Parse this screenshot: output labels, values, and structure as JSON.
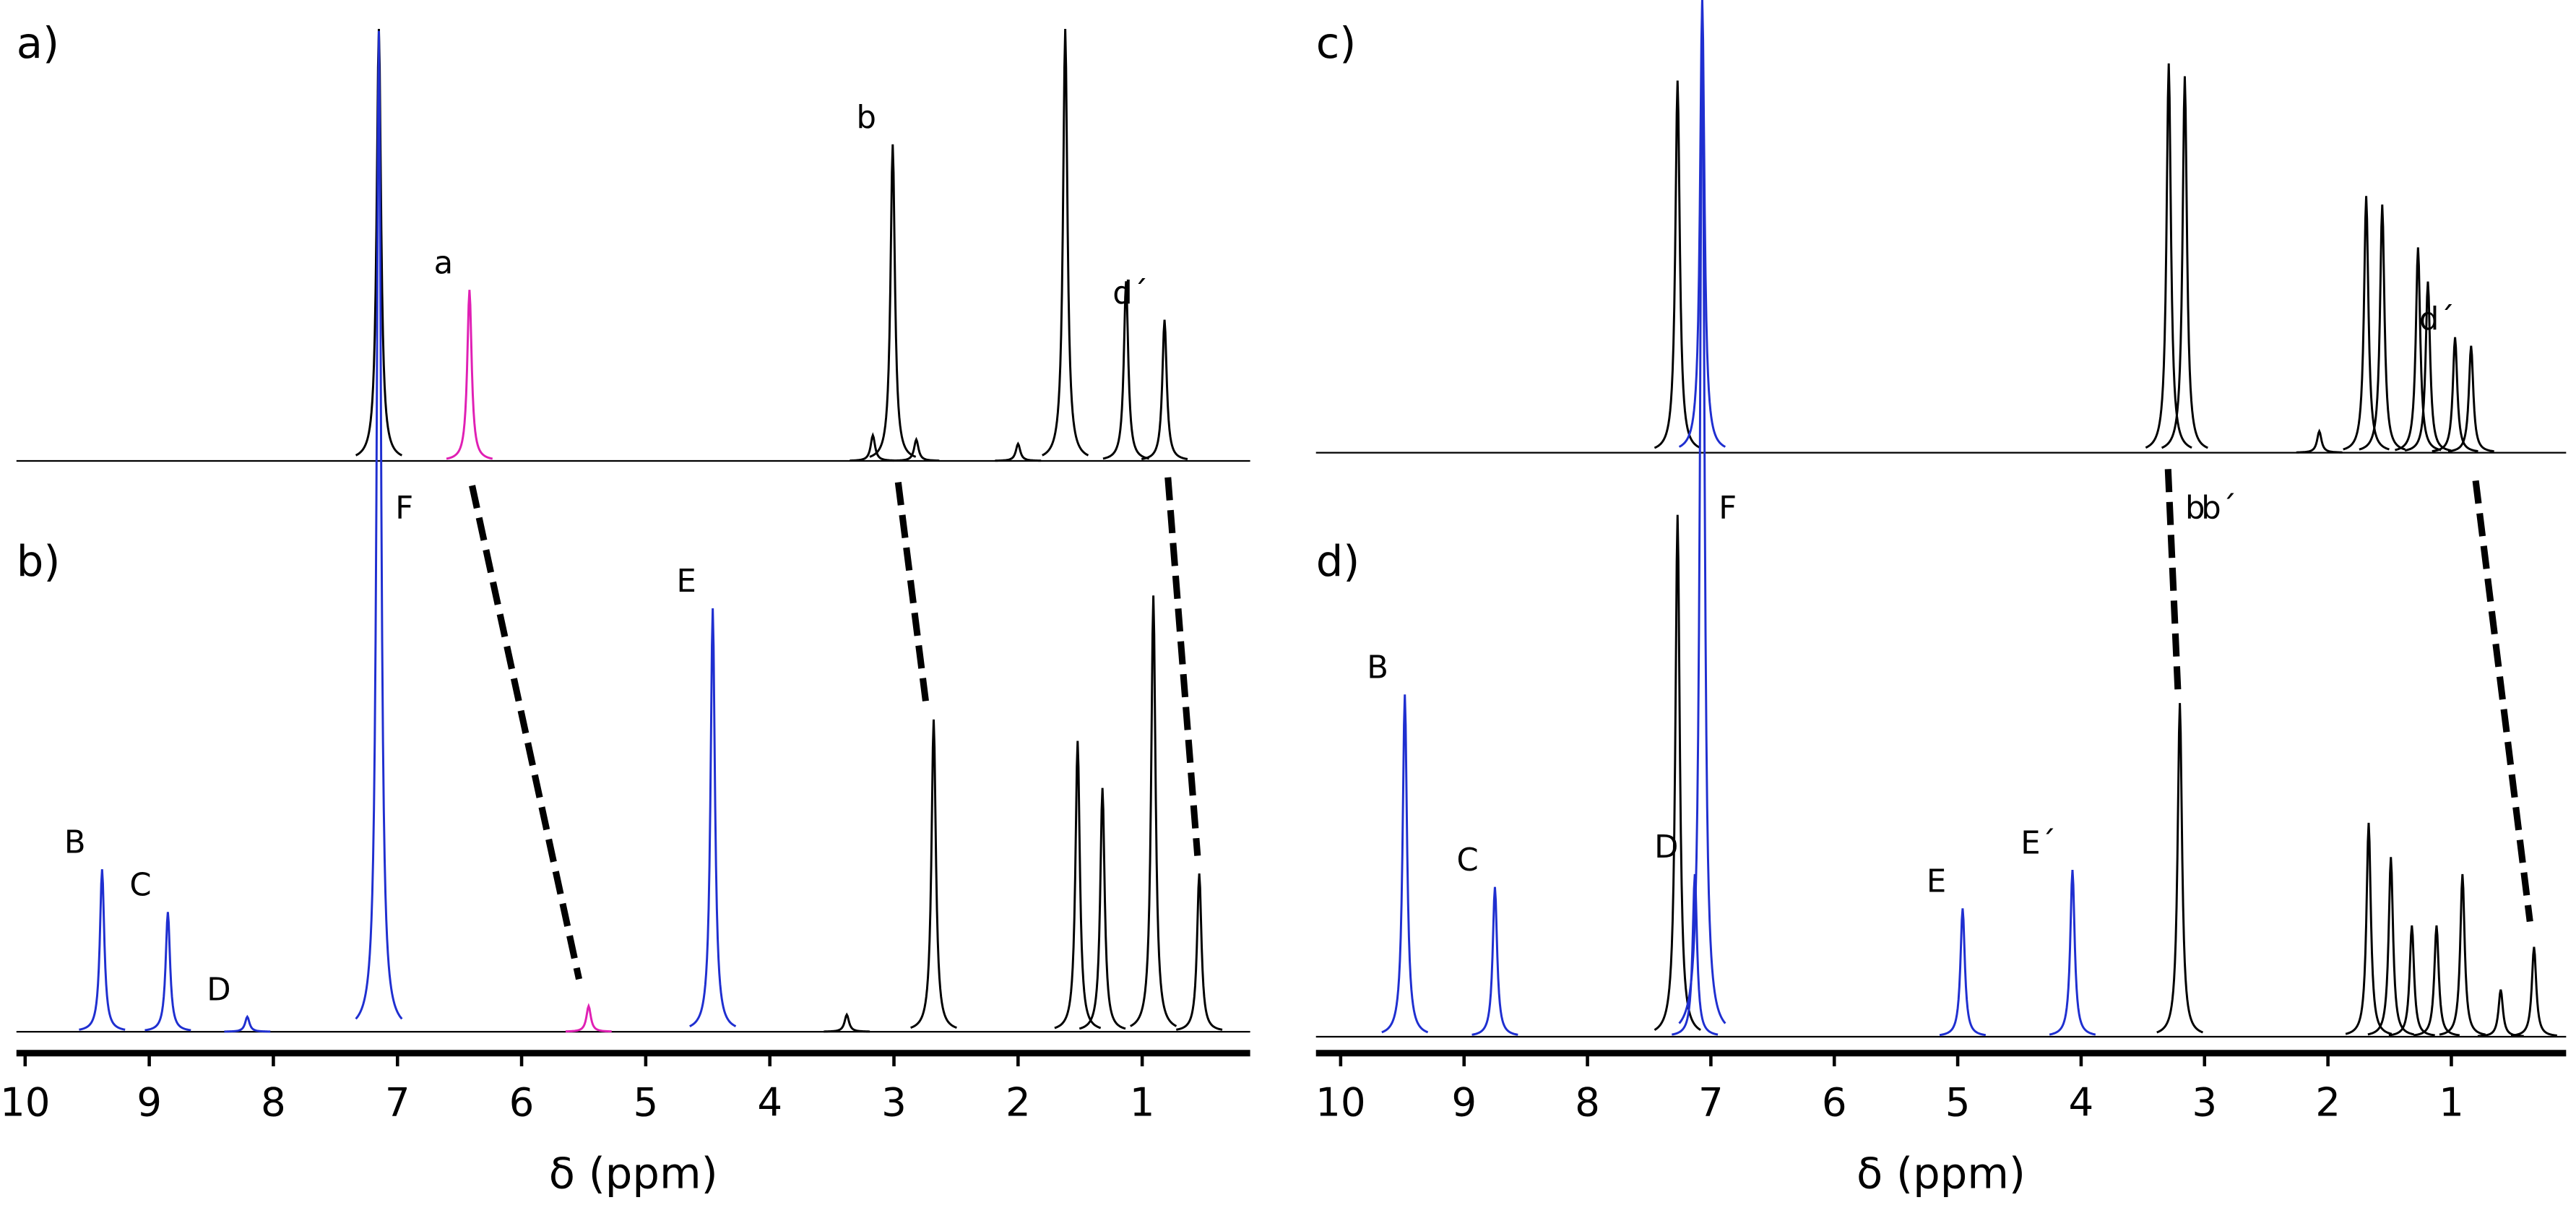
{
  "chart_data": [
    {
      "type": "spectrum",
      "xlabel": "δ (ppm)",
      "xlim": [
        10.07,
        0.13
      ],
      "xticks": [
        10,
        9,
        8,
        7,
        6,
        5,
        4,
        3,
        2,
        1
      ],
      "spectra": [
        {
          "label": "a)",
          "x": [
            7.15,
            6.42,
            3.17,
            3.01,
            2.82,
            2.0,
            1.62,
            1.13,
            0.82
          ],
          "values": [
            101,
            40,
            6,
            74,
            5,
            4,
            101,
            42,
            33
          ],
          "colors": [
            "#000000",
            "#e01fb4",
            "#000000",
            "#000000",
            "#000000",
            "#000000",
            "#000000",
            "#000000",
            "#000000"
          ],
          "peak_labels": [
            null,
            "a",
            null,
            "b",
            null,
            null,
            null,
            null,
            "d´"
          ]
        },
        {
          "label": "b)",
          "x": [
            9.38,
            8.85,
            8.21,
            7.15,
            5.46,
            4.46,
            3.38,
            2.68,
            1.52,
            1.32,
            0.91,
            0.54
          ],
          "values": [
            38,
            28,
            3.5,
            234,
            6,
            99,
            4,
            73,
            68,
            57,
            102,
            37
          ],
          "colors": [
            "#1f2fd0",
            "#1f2fd0",
            "#1f2fd0",
            "#1f2fd0",
            "#e01fb4",
            "#1f2fd0",
            "#000000",
            "#000000",
            "#000000",
            "#000000",
            "#000000",
            "#000000"
          ],
          "peak_labels": [
            "B",
            "C",
            "D",
            "F",
            null,
            "E",
            null,
            null,
            null,
            null,
            null,
            null
          ]
        }
      ]
    },
    {
      "type": "spectrum",
      "xlabel": "δ (ppm)",
      "xlim": [
        10.2,
        0.07
      ],
      "xticks": [
        10,
        9,
        8,
        7,
        6,
        5,
        4,
        3,
        2,
        1
      ],
      "spectra": [
        {
          "label": "c)",
          "x": [
            7.27,
            7.07,
            3.29,
            3.16,
            2.07,
            1.69,
            1.56,
            1.27,
            1.19,
            0.97,
            0.84
          ],
          "values": [
            87,
            106,
            91,
            88,
            5,
            60,
            58,
            48,
            40,
            27,
            25
          ],
          "colors": [
            "#000000",
            "#1f2fd0",
            "#000000",
            "#000000",
            "#000000",
            "#000000",
            "#000000",
            "#000000",
            "#000000",
            "#000000",
            "#000000"
          ],
          "peak_labels": [
            null,
            null,
            "b",
            "b´",
            null,
            null,
            null,
            null,
            null,
            null,
            "d´"
          ]
        },
        {
          "label": "d)",
          "x": [
            9.48,
            8.75,
            7.27,
            7.13,
            7.07,
            4.96,
            4.07,
            3.2,
            1.67,
            1.49,
            1.32,
            1.12,
            0.91,
            0.6,
            0.33
          ],
          "values": [
            80,
            35,
            122,
            38,
            242,
            30,
            39,
            78,
            50,
            42,
            26,
            26,
            38,
            11,
            21
          ],
          "colors": [
            "#1f2fd0",
            "#1f2fd0",
            "#000000",
            "#1f2fd0",
            "#1f2fd0",
            "#1f2fd0",
            "#1f2fd0",
            "#000000",
            "#000000",
            "#000000",
            "#000000",
            "#000000",
            "#000000",
            "#000000",
            "#000000"
          ],
          "peak_labels": [
            "B",
            "C",
            null,
            "D",
            "F",
            "E",
            "E´",
            null,
            null,
            null,
            null,
            null,
            null,
            null,
            null
          ]
        }
      ]
    }
  ]
}
